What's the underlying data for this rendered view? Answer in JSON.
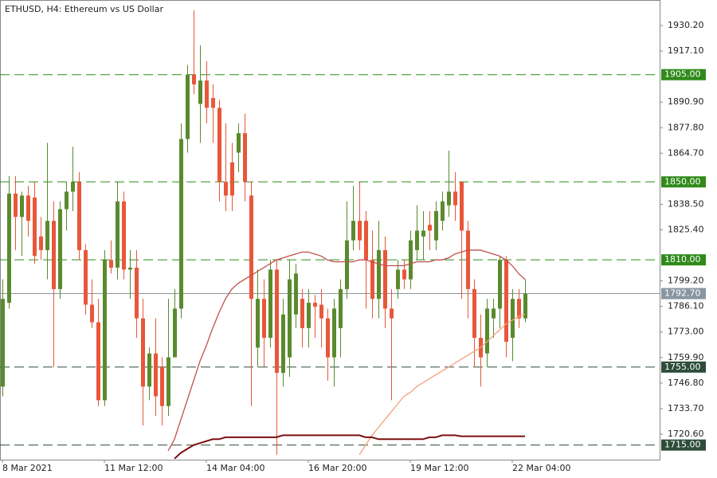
{
  "chart_data": {
    "type": "candlestick",
    "title": "ETHUSD, H4:  Ethereum vs US Dollar",
    "up_color": "#5a8a2e",
    "down_color": "#e8573a",
    "ylim": [
      1707.5,
      1943.3
    ],
    "yticks": [
      {
        "value": 1930.2,
        "label": "1930.20"
      },
      {
        "value": 1917.1,
        "label": "1917.10"
      },
      {
        "value": 1890.9,
        "label": "1890.90"
      },
      {
        "value": 1877.8,
        "label": "1877.80"
      },
      {
        "value": 1864.7,
        "label": "1864.70"
      },
      {
        "value": 1838.5,
        "label": "1838.50"
      },
      {
        "value": 1825.4,
        "label": "1825.40"
      },
      {
        "value": 1799.2,
        "label": "1799.20"
      },
      {
        "value": 1786.1,
        "label": "1786.10"
      },
      {
        "value": 1773,
        "label": "1773.00"
      },
      {
        "value": 1759.9,
        "label": "1759.90"
      },
      {
        "value": 1746.8,
        "label": "1746.80"
      },
      {
        "value": 1733.7,
        "label": "1733.70"
      },
      {
        "value": 1720.6,
        "label": "1720.60"
      }
    ],
    "levels": [
      {
        "value": 1905,
        "label": "1905.00",
        "color": "#2f8a1a"
      },
      {
        "value": 1850,
        "label": "1850.00",
        "color": "#2f8a1a"
      },
      {
        "value": 1810,
        "label": "1810.00",
        "color": "#2f8a1a"
      },
      {
        "value": 1755,
        "label": "1755.00",
        "color": "#2d4d3a"
      },
      {
        "value": 1715,
        "label": "1715.00",
        "color": "#2d4d3a"
      }
    ],
    "current_price": {
      "value": 1792.7,
      "label": "1792.70",
      "color": "#8896a2"
    },
    "categories": [
      "8 Mar 2021",
      null,
      null,
      null,
      null,
      null,
      null,
      null,
      null,
      null,
      null,
      null,
      null,
      null,
      null,
      null,
      "11 Mar 12:00",
      null,
      null,
      null,
      null,
      null,
      null,
      null,
      null,
      null,
      null,
      null,
      null,
      null,
      null,
      null,
      "14 Mar 04:00",
      null,
      null,
      null,
      null,
      null,
      null,
      null,
      null,
      null,
      null,
      null,
      null,
      null,
      null,
      null,
      "16 Mar 20:00",
      null,
      null,
      null,
      null,
      null,
      null,
      null,
      null,
      null,
      null,
      null,
      null,
      null,
      null,
      null,
      "19 Mar 12:00",
      null,
      null,
      null,
      null,
      null,
      null,
      null,
      null,
      null,
      null,
      null,
      null,
      null,
      null,
      null,
      "22 Mar 04:00",
      null,
      null
    ],
    "ohlc": [
      [
        1745,
        1800,
        1740,
        1790
      ],
      [
        1788,
        1853,
        1785,
        1844
      ],
      [
        1844,
        1853,
        1815,
        1832
      ],
      [
        1832,
        1845,
        1812,
        1843
      ],
      [
        1843,
        1848,
        1822,
        1830
      ],
      [
        1842,
        1850,
        1808,
        1812
      ],
      [
        1822,
        1832,
        1810,
        1815
      ],
      [
        1815,
        1870,
        1800,
        1830
      ],
      [
        1830,
        1840,
        1755,
        1795
      ],
      [
        1795,
        1840,
        1790,
        1836
      ],
      [
        1836,
        1850,
        1825,
        1845
      ],
      [
        1845,
        1868,
        1835,
        1850
      ],
      [
        1850,
        1855,
        1810,
        1815
      ],
      [
        1815,
        1818,
        1782,
        1787
      ],
      [
        1787,
        1800,
        1775,
        1778
      ],
      [
        1778,
        1790,
        1735,
        1738
      ],
      [
        1738,
        1815,
        1735,
        1810
      ],
      [
        1810,
        1820,
        1803,
        1806
      ],
      [
        1806,
        1850,
        1800,
        1840
      ],
      [
        1840,
        1845,
        1800,
        1805
      ],
      [
        1805,
        1815,
        1790,
        1806
      ],
      [
        1806,
        1815,
        1770,
        1780
      ],
      [
        1780,
        1790,
        1725,
        1745
      ],
      [
        1745,
        1765,
        1738,
        1762
      ],
      [
        1762,
        1780,
        1730,
        1740
      ],
      [
        1755,
        1760,
        1725,
        1735
      ],
      [
        1735,
        1790,
        1730,
        1760
      ],
      [
        1760,
        1795,
        1760,
        1785
      ],
      [
        1785,
        1880,
        1780,
        1872
      ],
      [
        1872,
        1910,
        1865,
        1905
      ],
      [
        1905,
        1938,
        1895,
        1900
      ],
      [
        1890,
        1920,
        1870,
        1902
      ],
      [
        1902,
        1912,
        1880,
        1888
      ],
      [
        1893,
        1900,
        1870,
        1888
      ],
      [
        1888,
        1892,
        1840,
        1850
      ],
      [
        1850,
        1880,
        1835,
        1843
      ],
      [
        1860,
        1870,
        1835,
        1843
      ],
      [
        1865,
        1880,
        1855,
        1875
      ],
      [
        1875,
        1885,
        1840,
        1850
      ],
      [
        1843,
        1850,
        1735,
        1790
      ],
      [
        1765,
        1805,
        1755,
        1790
      ],
      [
        1790,
        1800,
        1755,
        1770
      ],
      [
        1770,
        1810,
        1765,
        1805
      ],
      [
        1805,
        1810,
        1710,
        1752
      ],
      [
        1752,
        1790,
        1745,
        1782
      ],
      [
        1760,
        1810,
        1750,
        1800
      ],
      [
        1782,
        1808,
        1775,
        1803
      ],
      [
        1790,
        1795,
        1765,
        1775
      ],
      [
        1775,
        1795,
        1765,
        1788
      ],
      [
        1788,
        1792,
        1770,
        1786
      ],
      [
        1787,
        1795,
        1765,
        1780
      ],
      [
        1780,
        1785,
        1748,
        1760
      ],
      [
        1760,
        1790,
        1745,
        1785
      ],
      [
        1775,
        1800,
        1760,
        1795
      ],
      [
        1795,
        1840,
        1790,
        1820
      ],
      [
        1820,
        1848,
        1815,
        1830
      ],
      [
        1830,
        1850,
        1815,
        1820
      ],
      [
        1830,
        1835,
        1785,
        1810
      ],
      [
        1810,
        1825,
        1780,
        1790
      ],
      [
        1790,
        1830,
        1780,
        1815
      ],
      [
        1815,
        1822,
        1775,
        1785
      ],
      [
        1785,
        1795,
        1738,
        1780
      ],
      [
        1795,
        1810,
        1790,
        1805
      ],
      [
        1805,
        1810,
        1795,
        1800
      ],
      [
        1800,
        1825,
        1795,
        1820
      ],
      [
        1815,
        1838,
        1810,
        1825
      ],
      [
        1822,
        1835,
        1810,
        1825
      ],
      [
        1828,
        1835,
        1815,
        1825
      ],
      [
        1820,
        1840,
        1815,
        1835
      ],
      [
        1830,
        1845,
        1825,
        1840
      ],
      [
        1838,
        1866,
        1832,
        1845
      ],
      [
        1845,
        1855,
        1830,
        1838
      ],
      [
        1850,
        1850,
        1790,
        1825
      ],
      [
        1825,
        1830,
        1780,
        1795
      ],
      [
        1795,
        1800,
        1755,
        1770
      ],
      [
        1770,
        1782,
        1745,
        1760
      ],
      [
        1762,
        1790,
        1755,
        1785
      ],
      [
        1780,
        1790,
        1770,
        1785
      ],
      [
        1785,
        1812,
        1775,
        1810
      ],
      [
        1810,
        1812,
        1760,
        1768
      ],
      [
        1770,
        1795,
        1758,
        1790
      ],
      [
        1790,
        1795,
        1775,
        1780
      ],
      [
        1780,
        1800,
        1778,
        1792.7
      ]
    ],
    "series": [
      {
        "color": "#c0504d",
        "values": [
          null,
          null,
          null,
          null,
          null,
          null,
          null,
          null,
          null,
          null,
          null,
          null,
          null,
          null,
          null,
          null,
          null,
          null,
          null,
          null,
          null,
          null,
          null,
          null,
          null,
          null,
          1712,
          1718,
          1728,
          1738,
          1748,
          1758,
          1766,
          1775,
          1783,
          1790,
          1795,
          1798,
          1800,
          1802,
          1804,
          1806,
          1808,
          1810,
          1811,
          1812,
          1813,
          1814,
          1814,
          1813,
          1812,
          1810,
          1809,
          1809,
          1809,
          1809,
          1810,
          1810,
          1809,
          1808,
          1807,
          1807,
          1807,
          1807,
          1808,
          1809,
          1809,
          1809,
          1810,
          1810,
          1811,
          1813,
          1814,
          1815,
          1815,
          1815,
          1814,
          1813,
          1812,
          1810,
          1807,
          1803,
          1800
        ]
      },
      {
        "color": "#f4a07a",
        "values": [
          null,
          null,
          null,
          null,
          null,
          null,
          null,
          null,
          null,
          null,
          null,
          null,
          null,
          null,
          null,
          null,
          null,
          null,
          null,
          null,
          null,
          null,
          null,
          null,
          null,
          null,
          null,
          null,
          null,
          null,
          null,
          null,
          null,
          null,
          null,
          null,
          null,
          null,
          null,
          null,
          null,
          null,
          null,
          null,
          null,
          null,
          null,
          null,
          null,
          null,
          null,
          null,
          null,
          null,
          null,
          null,
          1710,
          1715,
          1720,
          1724,
          1728,
          1732,
          1736,
          1740,
          1742,
          1745,
          1747,
          1749,
          1751,
          1753,
          1755,
          1757,
          1759,
          1761,
          1763,
          1765,
          1768,
          1771,
          1774,
          1777,
          1779,
          1781,
          1782
        ]
      },
      {
        "color": "#7a1010",
        "values": [
          null,
          null,
          null,
          null,
          null,
          null,
          null,
          null,
          null,
          null,
          null,
          null,
          null,
          null,
          null,
          null,
          null,
          null,
          null,
          null,
          null,
          null,
          null,
          null,
          null,
          null,
          null,
          1708,
          1711,
          1713,
          1715,
          1716,
          1717,
          1718,
          1718,
          1719,
          1719,
          1719,
          1719,
          1719,
          1719,
          1719,
          1719,
          1719,
          1720,
          1720,
          1720,
          1720,
          1720,
          1720,
          1720,
          1720,
          1720,
          1720,
          1720,
          1720,
          1720,
          1719,
          1719,
          1718,
          1718,
          1718,
          1718,
          1718,
          1718,
          1718,
          1718,
          1719,
          1719,
          1720,
          1720,
          1720,
          1719.5,
          1719.5,
          1719.5,
          1719.5,
          1719.5,
          1719.5,
          1719.5,
          1719.5,
          1719.5,
          1719.5,
          1719.5
        ]
      }
    ]
  }
}
